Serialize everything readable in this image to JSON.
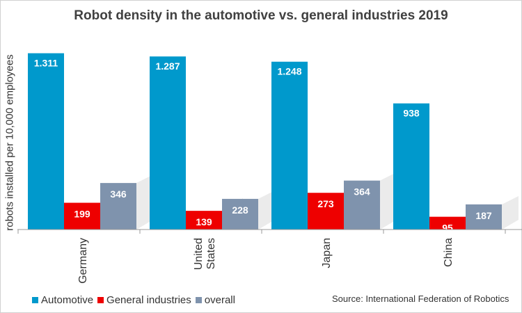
{
  "chart_data": {
    "type": "bar",
    "title": "Robot density in the automotive vs. general industries 2019",
    "ylabel": "robots installed per 10,000 employees",
    "xlabel": "",
    "categories": [
      "Germany",
      "United States",
      "Japan",
      "China"
    ],
    "category_lines": [
      [
        "Germany"
      ],
      [
        "United",
        "States"
      ],
      [
        "Japan"
      ],
      [
        "China"
      ]
    ],
    "ylim": [
      0,
      1500
    ],
    "grid": false,
    "legend_position": "bottom-left",
    "series": [
      {
        "name": "Automotive",
        "values": [
          1311,
          1287,
          1248,
          938
        ],
        "labels": [
          "1.311",
          "1.287",
          "1.248",
          "938"
        ],
        "color": "#0099cc"
      },
      {
        "name": "General industries",
        "values": [
          199,
          139,
          273,
          95
        ],
        "labels": [
          "199",
          "139",
          "273",
          "95"
        ],
        "color": "#ee0000"
      },
      {
        "name": "overall",
        "values": [
          346,
          228,
          364,
          187
        ],
        "labels": [
          "346",
          "228",
          "364",
          "187"
        ],
        "color": "#7f93ad"
      }
    ],
    "source": "Source: International Federation of Robotics"
  }
}
